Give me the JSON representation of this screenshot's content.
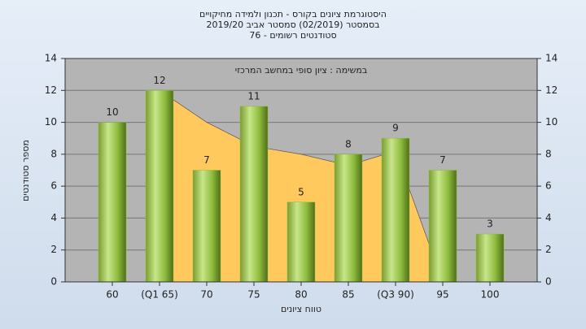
{
  "chart_data": {
    "type": "bar",
    "title": [
      "היסטוגרמת ציונים בקורס - תכנון ולמידה מחיקויים",
      "בסמסטר (02/2019) סמסטר אביב 2019/20",
      "סטודנטים רשומים - 76"
    ],
    "annotation": "במשימה : ציון סופי במחשב המרכזי",
    "x_label": "טווח ציונים",
    "y_label": "מספר סטודנטים",
    "categories": [
      "60",
      "(Q1 65)",
      "70",
      "75",
      "80",
      "85",
      "(Q3 90)",
      "95",
      "100"
    ],
    "series": [
      {
        "type": "bar",
        "color": "#8dbb3c",
        "values": [
          10,
          12,
          7,
          11,
          5,
          8,
          9,
          7,
          3
        ]
      },
      {
        "type": "area",
        "color": "#ffc95e",
        "values": [
          null,
          12,
          10,
          8.5,
          8,
          7.3,
          8.2,
          0,
          null
        ]
      }
    ],
    "ylim": [
      0,
      14
    ],
    "yticks": [
      0,
      2,
      4,
      6,
      8,
      10,
      12,
      14
    ],
    "y2lim": [
      0,
      14
    ],
    "y2ticks": [
      0,
      2,
      4,
      6,
      8,
      10,
      12,
      14
    ],
    "grid": true
  }
}
